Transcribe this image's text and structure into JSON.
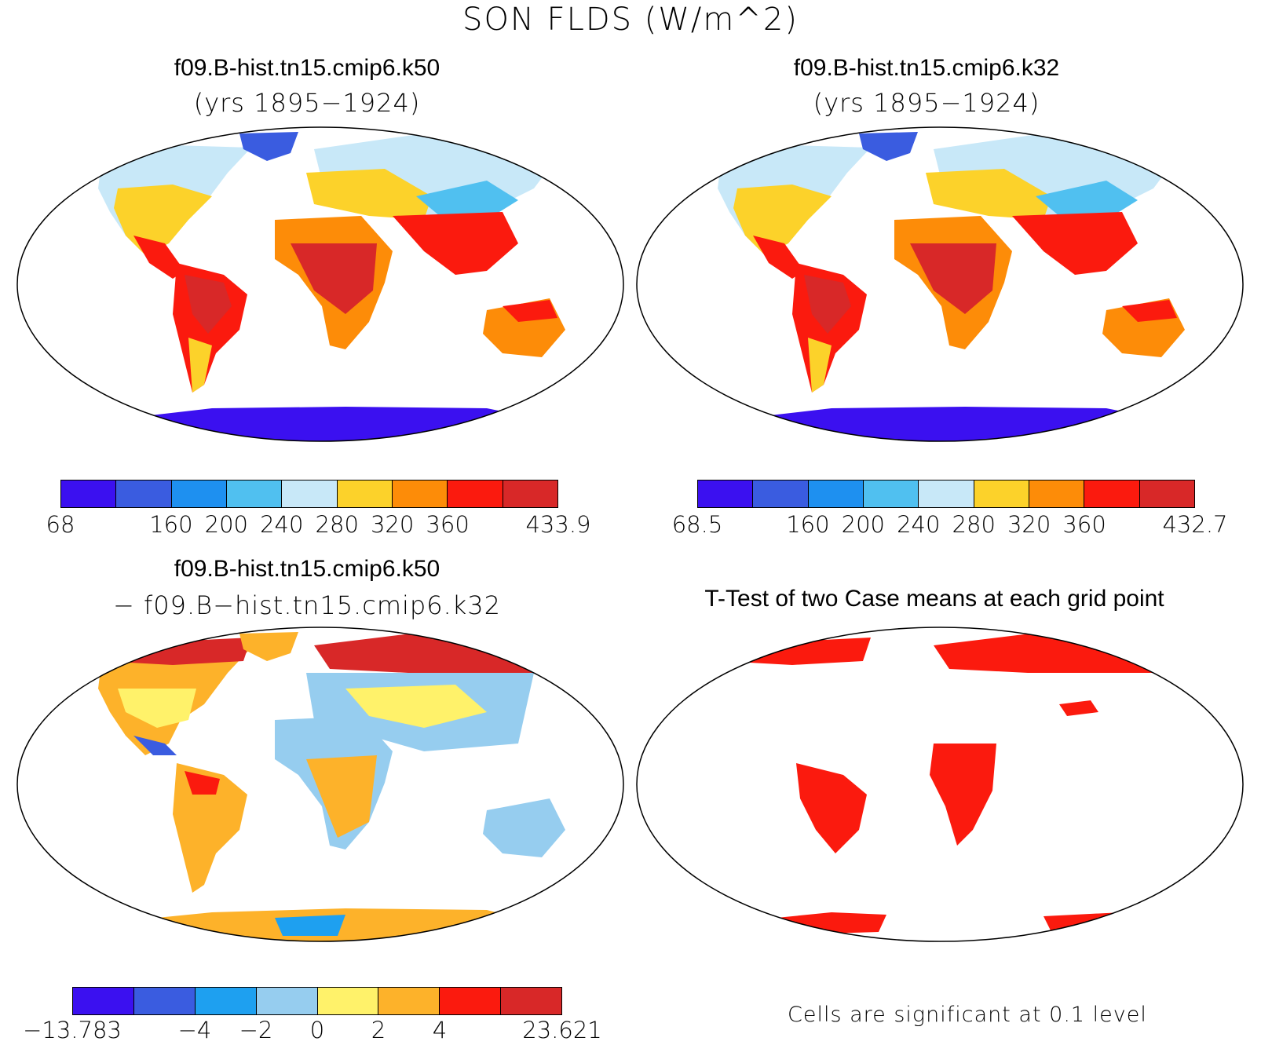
{
  "figure": {
    "title": "SON FLDS (W/m^2)"
  },
  "panels": [
    {
      "case": "f09.B-hist.tn15.cmip6.k50",
      "subtitle": "(yrs 1895−1924)",
      "colorbar": {
        "colors": [
          "#3b10f0",
          "#3a5ce0",
          "#1e90f0",
          "#50c0f0",
          "#c8e8f8",
          "#fcd22a",
          "#fd8c08",
          "#fb1a0e",
          "#d82828"
        ],
        "tick_labels": [
          "68",
          "160",
          "200",
          "240",
          "280",
          "320",
          "360",
          "433.9"
        ]
      }
    },
    {
      "case": "f09.B-hist.tn15.cmip6.k32",
      "subtitle": "(yrs 1895−1924)",
      "colorbar": {
        "colors": [
          "#3b10f0",
          "#3a5ce0",
          "#1e90f0",
          "#50c0f0",
          "#c8e8f8",
          "#fcd22a",
          "#fd8c08",
          "#fb1a0e",
          "#d82828"
        ],
        "tick_labels": [
          "68.5",
          "160",
          "200",
          "240",
          "280",
          "320",
          "360",
          "432.7"
        ]
      }
    },
    {
      "case": "f09.B-hist.tn15.cmip6.k50",
      "subtitle": "− f09.B−hist.tn15.cmip6.k32",
      "colorbar": {
        "colors": [
          "#3b10f0",
          "#3a5ce0",
          "#1ea0f0",
          "#96cdef",
          "#fff26a",
          "#fdb22a",
          "#fb1a0e",
          "#d82828"
        ],
        "tick_labels": [
          "−13.783",
          "−4",
          "−2",
          "0",
          "2",
          "4",
          "23.621"
        ]
      }
    },
    {
      "case": "T-Test of two Case means at each grid point",
      "note": "Cells are significant at 0.1 level"
    }
  ]
}
